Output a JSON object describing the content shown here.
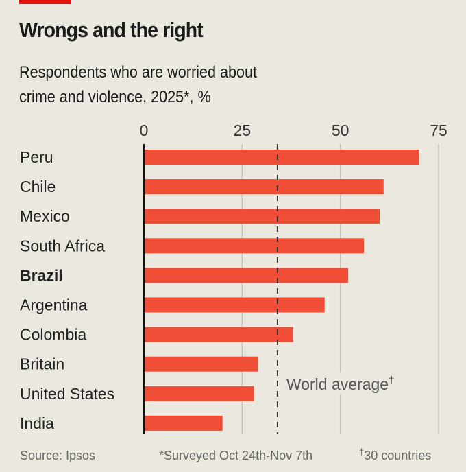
{
  "header": {
    "title": "Wrongs and the right",
    "subtitle_line1": "Respondents who are worried about",
    "subtitle_line2": "crime and violence, 2025*, %"
  },
  "chart_data": {
    "type": "bar",
    "orientation": "horizontal",
    "title": "Wrongs and the right",
    "subtitle": "Respondents who are worried about crime and violence, 2025*, %",
    "categories": [
      "Peru",
      "Chile",
      "Mexico",
      "South Africa",
      "Brazil",
      "Argentina",
      "Colombia",
      "Britain",
      "United States",
      "India"
    ],
    "values": [
      70,
      61,
      60,
      56,
      52,
      46,
      38,
      29,
      28,
      20
    ],
    "highlight": "Brazil",
    "xlim": [
      0,
      75
    ],
    "xticks": [
      "0",
      "25",
      "50",
      "75"
    ],
    "grid": true,
    "reference_line": {
      "label": "World average",
      "label_mark": "†",
      "value": 34
    },
    "bar_color": "#f04e37",
    "source": "Source: Ipsos",
    "footnote1": "*Surveyed Oct 24th-Nov 7th",
    "footnote2_mark": "†",
    "footnote2": "30 countries"
  }
}
